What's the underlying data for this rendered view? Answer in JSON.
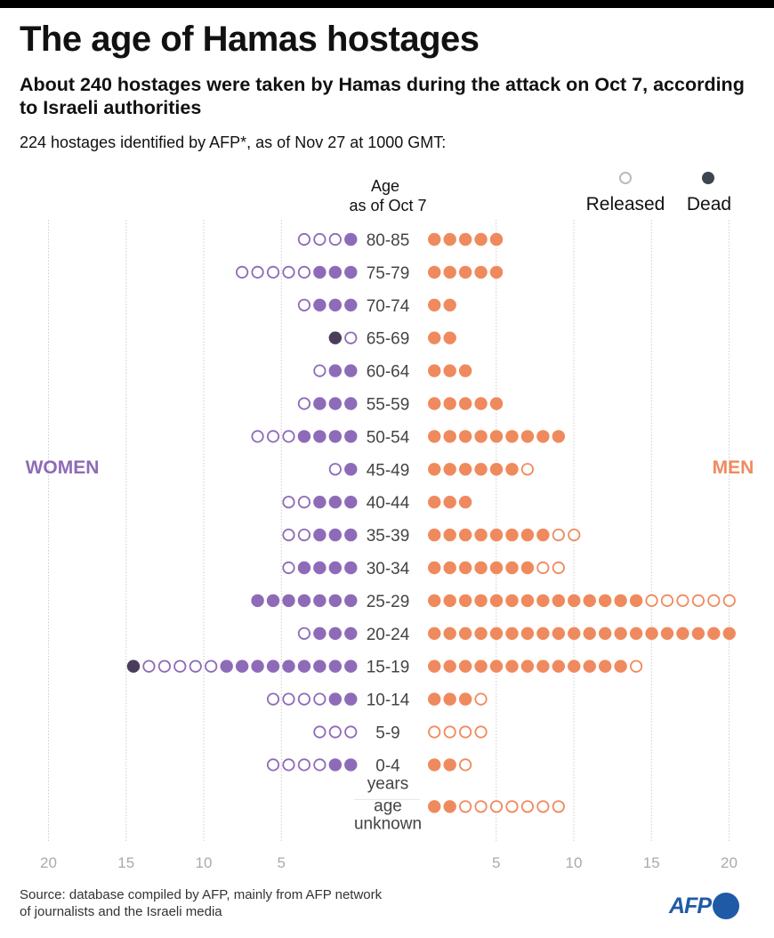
{
  "title": "The age of Hamas hostages",
  "subtitle": "About 240 hostages were taken by Hamas during the attack on Oct 7, according to Israeli authorities",
  "intro": "224 hostages identified by AFP*,  as of Nov 27 at 1000 GMT:",
  "source": {
    "line1": "Source: database compiled by AFP, mainly from AFP network",
    "line2": "of journalists and the Israeli media"
  },
  "logo": "AFP",
  "colors": {
    "women": "#8e6bb8",
    "men": "#ef8a5e",
    "dead": "#4a3d5c",
    "legend_dead": "#3d4550",
    "legend_released": "#bbbbbb",
    "grid": "#cccccc",
    "tick": "#aaaaaa"
  },
  "chart_data": {
    "type": "dot-pyramid",
    "title": "The age of Hamas hostages",
    "category_header_line1": "Age",
    "category_header_line2": "as of Oct 7",
    "left_label": "WOMEN",
    "right_label": "MEN",
    "legend": [
      {
        "name": "Released",
        "style": "hollow"
      },
      {
        "name": "Dead",
        "style": "filled-dark"
      }
    ],
    "x_ticks": [
      20,
      15,
      10,
      5
    ],
    "xlim": [
      0,
      20
    ],
    "grid": true,
    "categories": [
      {
        "label": "80-85",
        "women": {
          "held": 1,
          "released": 3,
          "dead": 0
        },
        "men": {
          "held": 5,
          "released": 0,
          "dead": 0
        }
      },
      {
        "label": "75-79",
        "women": {
          "held": 3,
          "released": 5,
          "dead": 0
        },
        "men": {
          "held": 5,
          "released": 0,
          "dead": 0
        }
      },
      {
        "label": "70-74",
        "women": {
          "held": 3,
          "released": 1,
          "dead": 0
        },
        "men": {
          "held": 2,
          "released": 0,
          "dead": 0
        }
      },
      {
        "label": "65-69",
        "women": {
          "held": 0,
          "released": 1,
          "dead": 1
        },
        "men": {
          "held": 2,
          "released": 0,
          "dead": 0
        }
      },
      {
        "label": "60-64",
        "women": {
          "held": 2,
          "released": 1,
          "dead": 0
        },
        "men": {
          "held": 3,
          "released": 0,
          "dead": 0
        }
      },
      {
        "label": "55-59",
        "women": {
          "held": 3,
          "released": 1,
          "dead": 0
        },
        "men": {
          "held": 5,
          "released": 0,
          "dead": 0
        }
      },
      {
        "label": "50-54",
        "women": {
          "held": 4,
          "released": 3,
          "dead": 0
        },
        "men": {
          "held": 9,
          "released": 0,
          "dead": 0
        }
      },
      {
        "label": "45-49",
        "women": {
          "held": 1,
          "released": 1,
          "dead": 0
        },
        "men": {
          "held": 6,
          "released": 1,
          "dead": 0
        }
      },
      {
        "label": "40-44",
        "women": {
          "held": 3,
          "released": 2,
          "dead": 0
        },
        "men": {
          "held": 3,
          "released": 0,
          "dead": 0
        }
      },
      {
        "label": "35-39",
        "women": {
          "held": 3,
          "released": 2,
          "dead": 0
        },
        "men": {
          "held": 8,
          "released": 2,
          "dead": 0
        }
      },
      {
        "label": "30-34",
        "women": {
          "held": 4,
          "released": 1,
          "dead": 0
        },
        "men": {
          "held": 7,
          "released": 2,
          "dead": 0
        }
      },
      {
        "label": "25-29",
        "women": {
          "held": 7,
          "released": 0,
          "dead": 0
        },
        "men": {
          "held": 14,
          "released": 6,
          "dead": 0
        }
      },
      {
        "label": "20-24",
        "women": {
          "held": 3,
          "released": 1,
          "dead": 0
        },
        "men": {
          "held": 20,
          "released": 0,
          "dead": 0
        }
      },
      {
        "label": "15-19",
        "women": {
          "held": 9,
          "released": 5,
          "dead": 1
        },
        "men": {
          "held": 13,
          "released": 1,
          "dead": 0
        }
      },
      {
        "label": "10-14",
        "women": {
          "held": 2,
          "released": 4,
          "dead": 0
        },
        "men": {
          "held": 3,
          "released": 1,
          "dead": 0
        }
      },
      {
        "label": "5-9",
        "women": {
          "held": 0,
          "released": 3,
          "dead": 0
        },
        "men": {
          "held": 0,
          "released": 4,
          "dead": 0
        }
      },
      {
        "label": "0-4",
        "sublabel": "years",
        "women": {
          "held": 2,
          "released": 4,
          "dead": 0
        },
        "men": {
          "held": 2,
          "released": 1,
          "dead": 0
        }
      },
      {
        "label": "age",
        "sublabel": "unknown",
        "women": {
          "held": 0,
          "released": 0,
          "dead": 0
        },
        "men": {
          "held": 2,
          "released": 7,
          "dead": 0
        }
      }
    ]
  }
}
